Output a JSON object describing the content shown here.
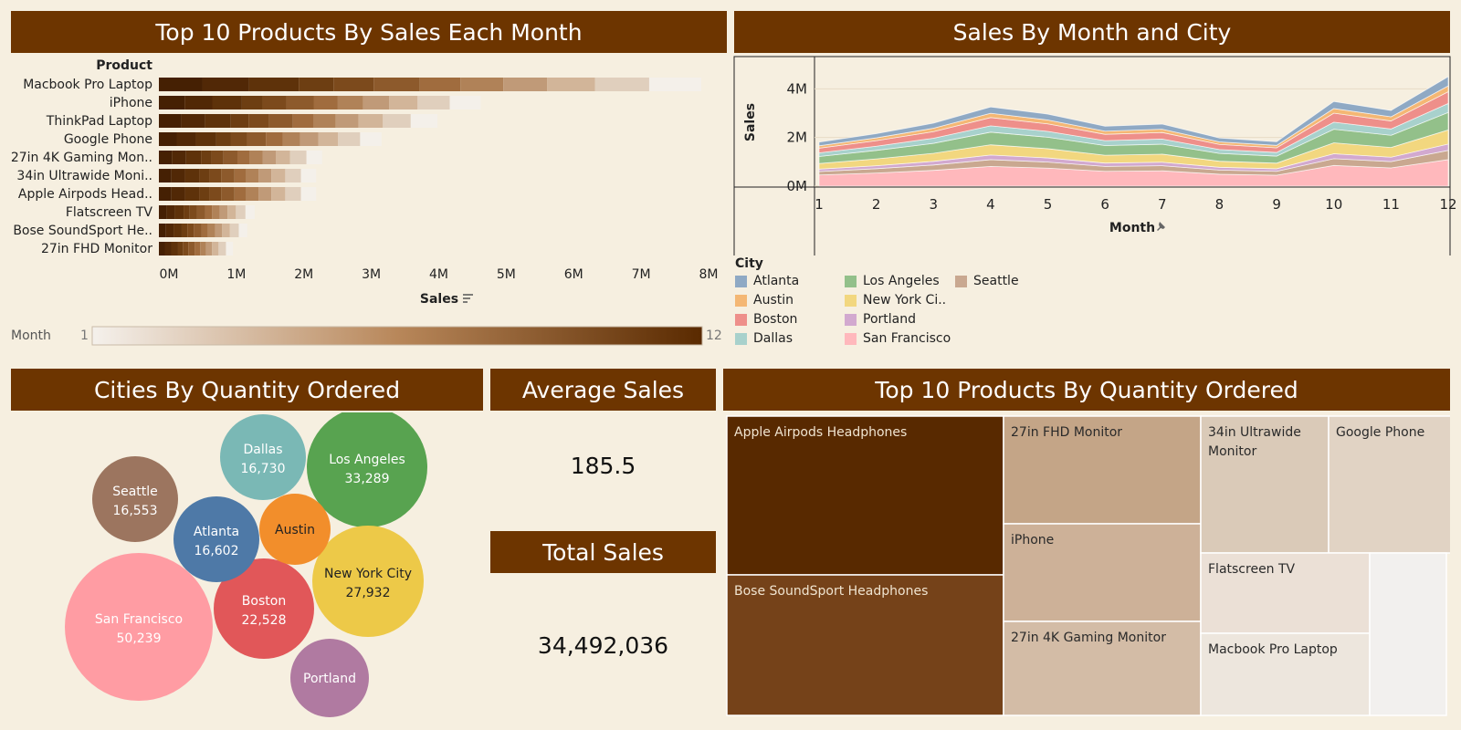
{
  "titles": {
    "top_products_sales": "Top 10 Products By Sales Each Month",
    "sales_month_city": "Sales By Month and City",
    "cities_qty": "Cities By Quantity Ordered",
    "avg_sales": "Average Sales",
    "total_sales": "Total Sales",
    "top_products_qty": "Top 10 Products By Quantity Ordered"
  },
  "kpis": {
    "average_sales": "185.5",
    "total_sales": "34,492,036"
  },
  "colors": {
    "header": "#6d3500",
    "background": "#f6efe0"
  },
  "month_legend": {
    "label": "Month",
    "min": "1",
    "max": "12"
  },
  "chart_data": [
    {
      "type": "bar",
      "stacked": true,
      "orientation": "horizontal",
      "row_header": "Product",
      "xlabel": "Sales",
      "xlim": [
        0,
        8000000
      ],
      "ticks": [
        "0M",
        "1M",
        "2M",
        "3M",
        "4M",
        "5M",
        "6M",
        "7M",
        "8M"
      ],
      "tick_values": [
        0,
        1000000,
        2000000,
        3000000,
        4000000,
        5000000,
        6000000,
        7000000,
        8000000
      ],
      "color_by": "Month",
      "categories": [
        "Macbook Pro Laptop",
        "iPhone",
        "ThinkPad Laptop",
        "Google Phone",
        "27in 4K Gaming Mon..",
        "34in Ultrawide Moni..",
        "Apple Airpods Head..",
        "Flatscreen TV",
        "Bose SoundSport He..",
        "27in FHD Monitor"
      ],
      "totals": [
        8040000,
        4770000,
        4130000,
        3300000,
        2420000,
        2330000,
        2330000,
        1420000,
        1310000,
        1100000
      ]
    },
    {
      "type": "area",
      "stacked": true,
      "xlabel": "Month",
      "ylabel": "Sales",
      "x": [
        1,
        2,
        3,
        4,
        5,
        6,
        7,
        8,
        9,
        10,
        11,
        12
      ],
      "ylim": [
        0,
        4800000
      ],
      "yticks": [
        "0M",
        "2M",
        "4M"
      ],
      "ytick_values": [
        0,
        2000000,
        4000000
      ],
      "legend_title": "City",
      "series": [
        {
          "name": "San Francisco",
          "color": "#ffb8bc",
          "values": [
            460000,
            540000,
            650000,
            810000,
            740000,
            610000,
            630000,
            490000,
            450000,
            850000,
            750000,
            1090000
          ]
        },
        {
          "name": "Seattle",
          "color": "#c9a890",
          "values": [
            140000,
            180000,
            220000,
            280000,
            250000,
            200000,
            210000,
            170000,
            160000,
            280000,
            260000,
            380000
          ]
        },
        {
          "name": "Portland",
          "color": "#d2a9cf",
          "values": [
            100000,
            120000,
            150000,
            190000,
            170000,
            140000,
            145000,
            115000,
            105000,
            200000,
            180000,
            260000
          ]
        },
        {
          "name": "New York Ci..",
          "color": "#f2d77f",
          "values": [
            230000,
            280000,
            330000,
            420000,
            380000,
            320000,
            330000,
            250000,
            230000,
            450000,
            400000,
            580000
          ]
        },
        {
          "name": "Los Angeles",
          "color": "#93c08a",
          "values": [
            290000,
            350000,
            410000,
            520000,
            470000,
            400000,
            410000,
            320000,
            290000,
            560000,
            500000,
            720000
          ]
        },
        {
          "name": "Dallas",
          "color": "#a8d1cc",
          "values": [
            150000,
            170000,
            210000,
            260000,
            240000,
            200000,
            210000,
            160000,
            150000,
            290000,
            260000,
            370000
          ]
        },
        {
          "name": "Boston",
          "color": "#ee8f8a",
          "values": [
            190000,
            230000,
            270000,
            340000,
            310000,
            260000,
            270000,
            210000,
            190000,
            370000,
            330000,
            480000
          ]
        },
        {
          "name": "Austin",
          "color": "#f4b774",
          "values": [
            100000,
            115000,
            140000,
            175000,
            160000,
            130000,
            135000,
            105000,
            100000,
            190000,
            170000,
            240000
          ]
        },
        {
          "name": "Atlanta",
          "color": "#8fa9c4",
          "values": [
            150000,
            170000,
            210000,
            260000,
            240000,
            200000,
            210000,
            160000,
            150000,
            290000,
            260000,
            380000
          ]
        }
      ],
      "legend": [
        {
          "name": "Atlanta",
          "color": "#8fa9c4"
        },
        {
          "name": "Austin",
          "color": "#f4b774"
        },
        {
          "name": "Boston",
          "color": "#ee8f8a"
        },
        {
          "name": "Dallas",
          "color": "#a8d1cc"
        },
        {
          "name": "Los Angeles",
          "color": "#93c08a"
        },
        {
          "name": "New York Ci..",
          "color": "#f2d77f"
        },
        {
          "name": "Portland",
          "color": "#d2a9cf"
        },
        {
          "name": "San Francisco",
          "color": "#ffb8bc"
        },
        {
          "name": "Seattle",
          "color": "#c9a890"
        }
      ]
    },
    {
      "type": "bubble",
      "bubbles": [
        {
          "name": "San Francisco",
          "value": "50,239",
          "color": "#ff9ca3"
        },
        {
          "name": "Los Angeles",
          "value": "33,289",
          "color": "#58a350"
        },
        {
          "name": "New York City",
          "value": "27,932",
          "color": "#edc948"
        },
        {
          "name": "Boston",
          "value": "22,528",
          "color": "#e15759"
        },
        {
          "name": "Dallas",
          "value": "16,730",
          "color": "#7ab8b5"
        },
        {
          "name": "Atlanta",
          "value": "16,602",
          "color": "#4e79a7"
        },
        {
          "name": "Seattle",
          "value": "16,553",
          "color": "#9c755f"
        },
        {
          "name": "Austin",
          "value": "",
          "color": "#f28e2b"
        },
        {
          "name": "Portland",
          "value": "",
          "color": "#b07aa1"
        }
      ]
    },
    {
      "type": "treemap",
      "items": [
        {
          "name": "Apple Airpods Headphones",
          "color": "#582900",
          "text_color": "#f0e4d0"
        },
        {
          "name": "Bose SoundSport Headphones",
          "color": "#754219",
          "text_color": "#f0e4d0"
        },
        {
          "name": "27in FHD Monitor",
          "color": "#c4a587",
          "text_color": "#2a2a2a"
        },
        {
          "name": "iPhone",
          "color": "#cdb198",
          "text_color": "#2a2a2a"
        },
        {
          "name": "27in 4K Gaming Monitor",
          "color": "#d3bca6",
          "text_color": "#2a2a2a"
        },
        {
          "name": "34in Ultrawide Monitor",
          "color": "#dacab8",
          "text_color": "#2a2a2a"
        },
        {
          "name": "Google Phone",
          "color": "#e1d3c4",
          "text_color": "#2a2a2a"
        },
        {
          "name": "Flatscreen TV",
          "color": "#ebe0d6",
          "text_color": "#2a2a2a"
        },
        {
          "name": "Macbook Pro Laptop",
          "color": "#ede6dd",
          "text_color": "#2a2a2a"
        },
        {
          "name": "",
          "color": "#f2f0ee",
          "text_color": "#2a2a2a"
        }
      ]
    }
  ]
}
